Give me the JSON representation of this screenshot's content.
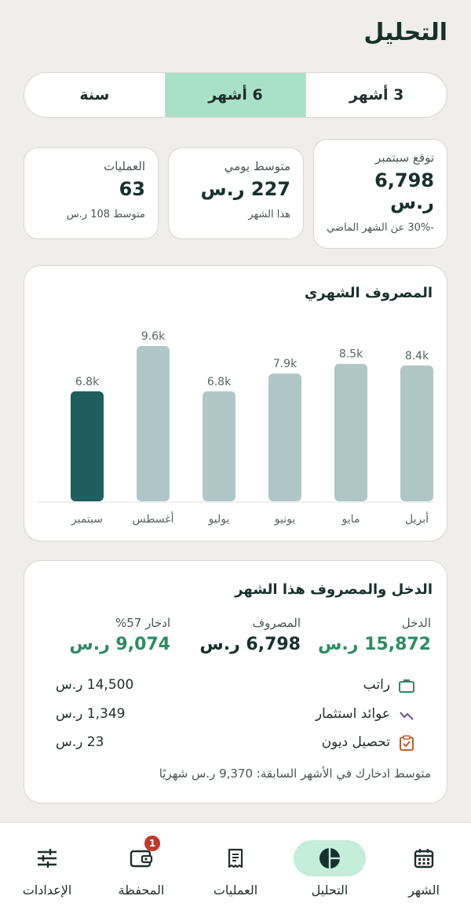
{
  "header": {
    "title": "التحليل"
  },
  "periods": [
    {
      "label": "3 أشهر",
      "active": false
    },
    {
      "label": "6 أشهر",
      "active": true
    },
    {
      "label": "سنة",
      "active": false
    }
  ],
  "stats": {
    "forecast": {
      "label": "توقع سبتمبر",
      "value": "6,798 ر.س",
      "sub": "-30% عن الشهر الماضي"
    },
    "daily_avg": {
      "label": "متوسط يومي",
      "value": "227 ر.س",
      "sub": "هذا الشهر"
    },
    "transactions": {
      "label": "العمليات",
      "value": "63",
      "sub": "متوسط 108 ر.س"
    }
  },
  "chart_card": {
    "title": "المصروف الشهري"
  },
  "chart_data": {
    "type": "bar",
    "categories": [
      "أبريل",
      "مايو",
      "يونيو",
      "يوليو",
      "أغسطس",
      "سبتمبر"
    ],
    "values": [
      8.4,
      8.5,
      7.9,
      6.8,
      9.6,
      6.8
    ],
    "value_labels": [
      "8.4k",
      "8.5k",
      "7.9k",
      "6.8k",
      "9.6k",
      "6.8k"
    ],
    "unit": "k",
    "highlight_index": 5,
    "colors": {
      "bar": "#AFC8C7",
      "highlight": "#1E5E5E",
      "label": "#5a6463"
    }
  },
  "income_card": {
    "title": "الدخل والمصروف هذا الشهر",
    "income": {
      "label": "الدخل",
      "value": "15,872 ر.س"
    },
    "expense": {
      "label": "المصروف",
      "value": "6,798 ر.س"
    },
    "savings": {
      "label": "ادخار 57%",
      "value": "9,074 ر.س"
    },
    "sources": [
      {
        "label": "راتب",
        "amount": "14,500 ر.س",
        "icon": "briefcase-icon"
      },
      {
        "label": "عوائد استثمار",
        "amount": "1,349 ر.س",
        "icon": "trend-icon"
      },
      {
        "label": "تحصيل ديون",
        "amount": "23 ر.س",
        "icon": "clipboard-check-icon"
      }
    ],
    "note": "متوسط ادخارك في الأشهر السابقة: 9,370 ر.س شهريًا"
  },
  "nav": {
    "month": "الشهر",
    "analysis": "التحليل",
    "transactions": "العمليات",
    "wallet": "المحفظة",
    "wallet_badge": "1",
    "settings": "الإعدادات",
    "active": "analysis"
  },
  "colors": {
    "accent": "#A9E0C8",
    "dark": "#17302c",
    "positive": "#2E8B62"
  }
}
